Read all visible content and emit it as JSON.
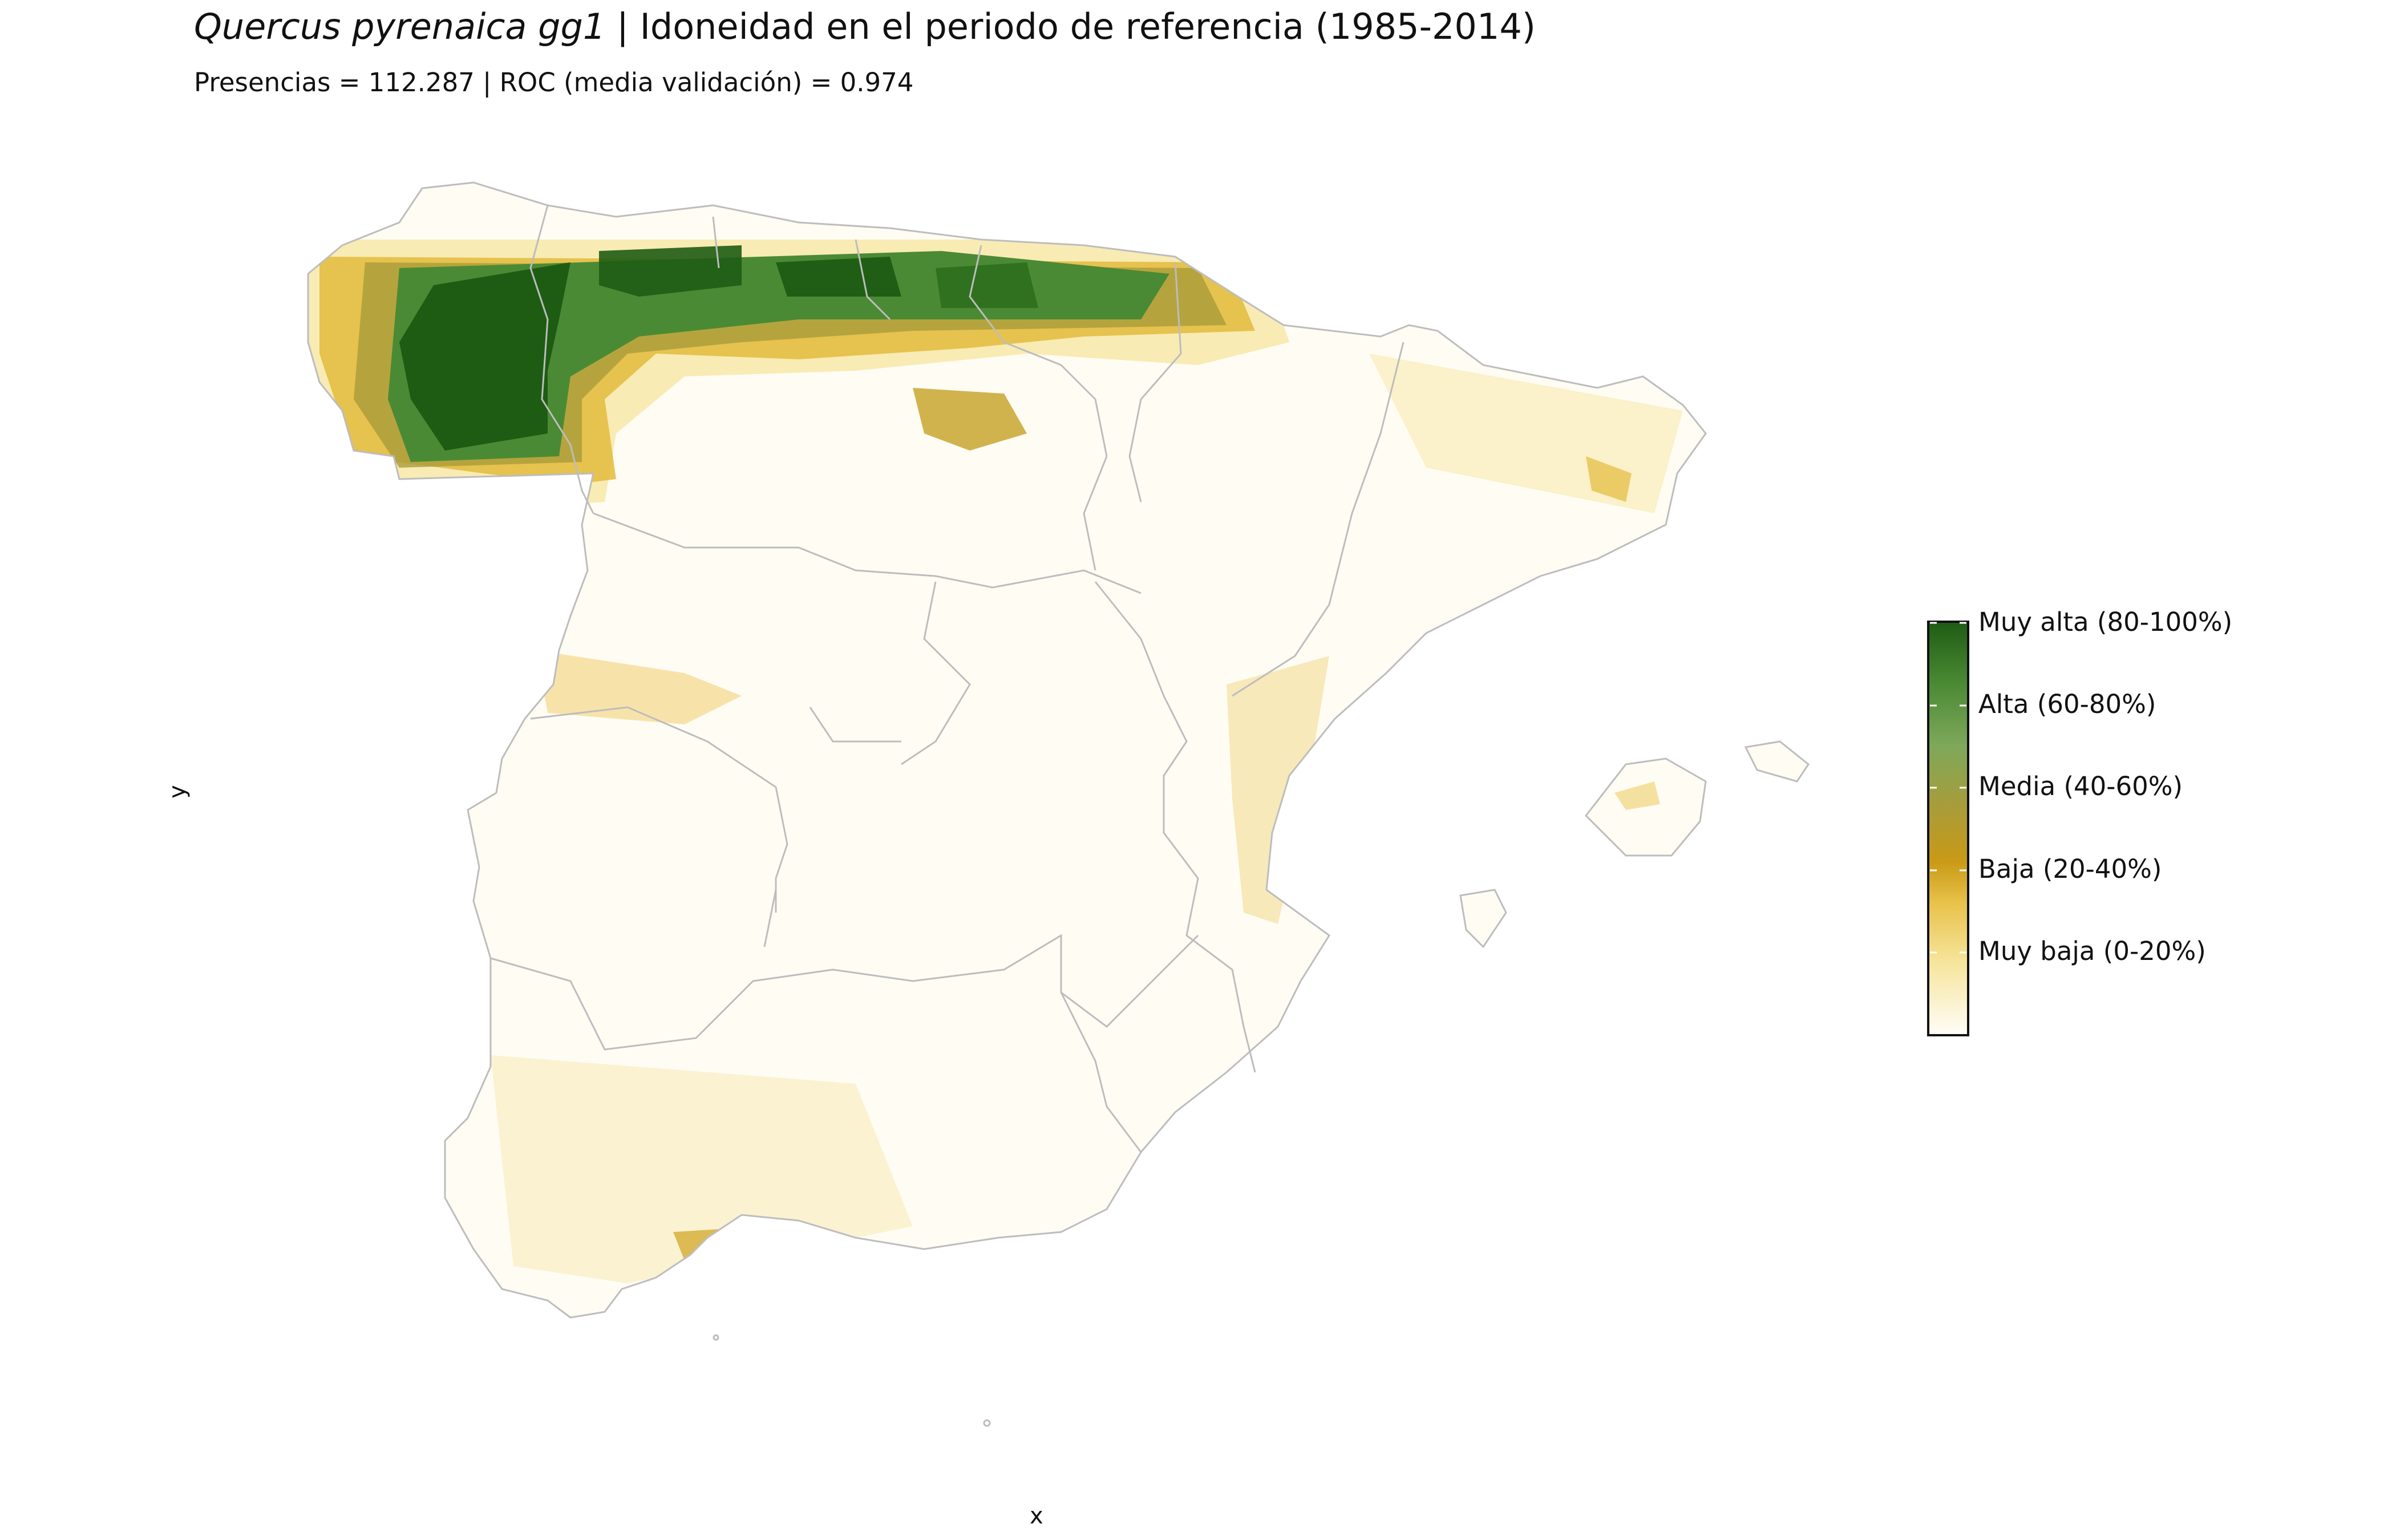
{
  "title": {
    "species": "Quercus pyrenaica gg1",
    "separator": " | ",
    "text": "Idoneidad en el periodo de referencia (1985-2014)"
  },
  "subtitle": "Presencias = 112.287  |  ROC (media validación) = 0.974",
  "axes": {
    "x_label": "x",
    "y_label": "y"
  },
  "legend": {
    "items": [
      {
        "label": "Muy alta (80-100%)"
      },
      {
        "label": "Alta (60-80%)"
      },
      {
        "label": "Media (40-60%)"
      },
      {
        "label": "Baja (20-40%)"
      },
      {
        "label": "Muy baja (0-20%)"
      }
    ],
    "gradient_colors": [
      "#fffdf7",
      "#f6e49a",
      "#e8c24a",
      "#c99a16",
      "#a99c3a",
      "#7ea85a",
      "#4b8a34",
      "#1e5c14"
    ]
  },
  "colors": {
    "land": "#fffcf4",
    "boundaries": "#bdbdbd",
    "very_high": "#1e5c14",
    "high": "#4b8a34",
    "medium": "#a99c3a",
    "low": "#e3bb3c",
    "very_low": "#f7e7a8"
  }
}
